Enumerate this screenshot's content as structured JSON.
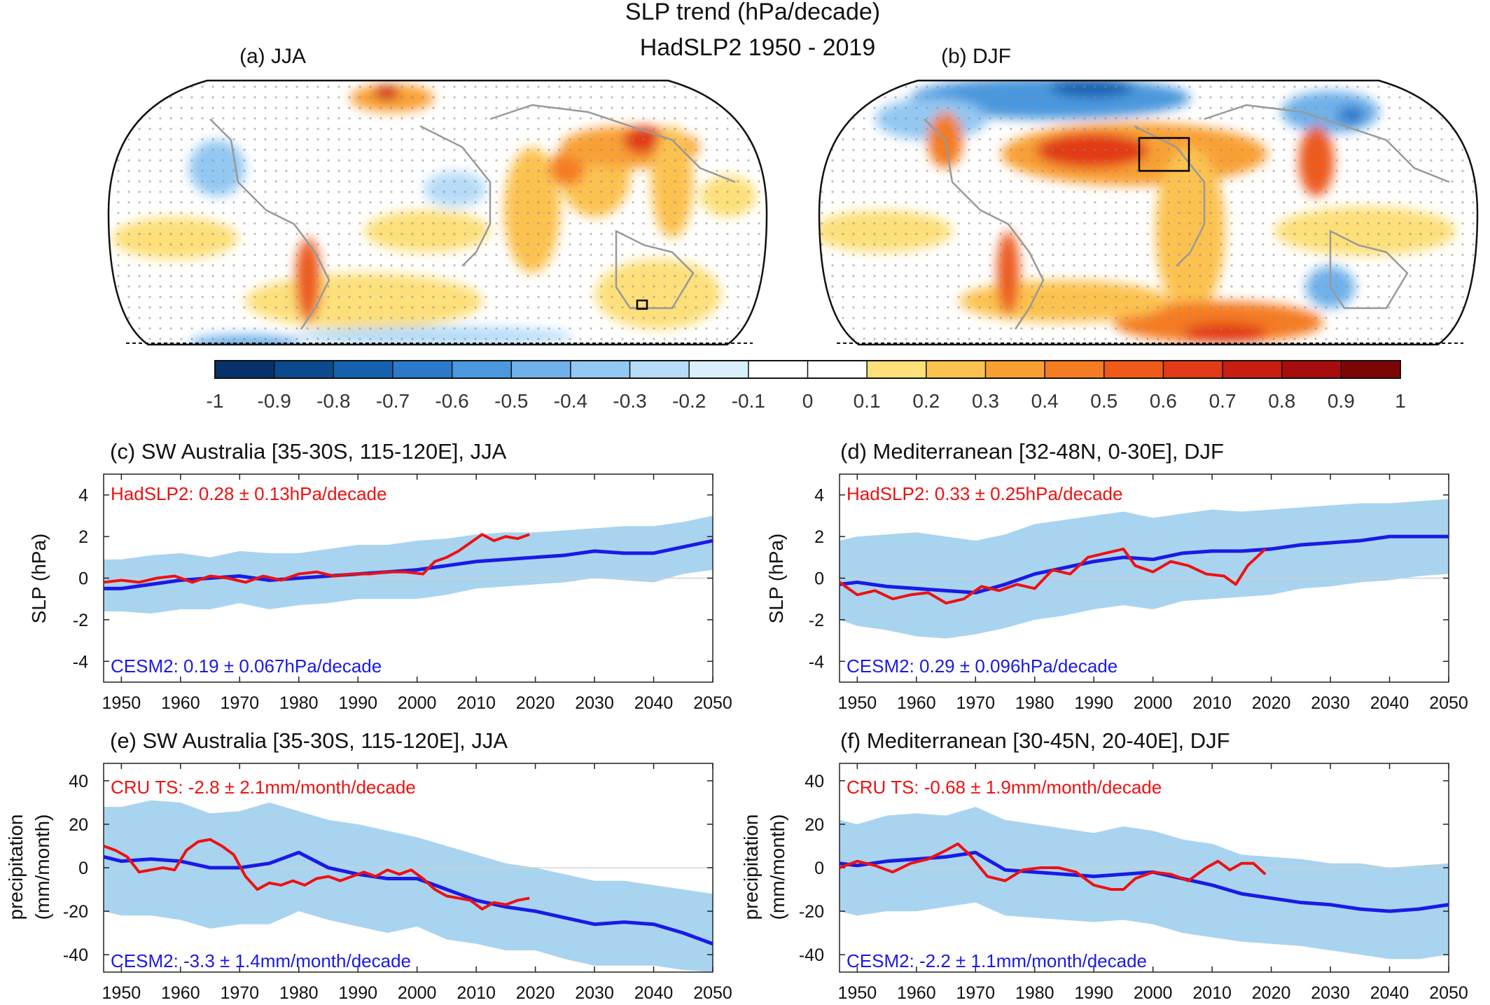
{
  "figure": {
    "title_line1": "SLP trend (hPa/decade)",
    "title_line2": "HadSLP2 1950 - 2019"
  },
  "maps": [
    {
      "label": "(a) JJA"
    },
    {
      "label": "(b) DJF"
    }
  ],
  "colorbar": {
    "ticks": [
      "-1",
      "-0.9",
      "-0.8",
      "-0.7",
      "-0.6",
      "-0.5",
      "-0.4",
      "-0.3",
      "-0.2",
      "-0.1",
      "0",
      "0.1",
      "0.2",
      "0.3",
      "0.4",
      "0.5",
      "0.6",
      "0.7",
      "0.8",
      "0.9",
      "1"
    ],
    "colors": [
      "#08306b",
      "#0b4a8c",
      "#1561b0",
      "#2b7bcc",
      "#4a98de",
      "#6fb1ea",
      "#93c8f2",
      "#b6dcf8",
      "#d9f0fb",
      "#ffffff",
      "#ffffff",
      "#fde07a",
      "#fcc24f",
      "#f9a034",
      "#f57c22",
      "#ee5a1a",
      "#e23b16",
      "#c91d12",
      "#a80d0d",
      "#7d0505"
    ]
  },
  "chart_data": [
    {
      "type": "line",
      "title": "(c) SW Australia [35-30S, 115-120E], JJA",
      "ylabel": "SLP (hPa)",
      "xlim": [
        1947,
        2050
      ],
      "ylim": [
        -5,
        5
      ],
      "xticks": [
        1950,
        1960,
        1970,
        1980,
        1990,
        2000,
        2010,
        2020,
        2030,
        2040,
        2050
      ],
      "yticks": [
        -4,
        -2,
        0,
        2,
        4
      ],
      "annotation_obs": "HadSLP2: 0.28 ± 0.13hPa/decade",
      "annotation_model": "CESM2: 0.19 ± 0.067hPa/decade",
      "obs_color": "#ee1111",
      "model_color": "#1a1ae6",
      "spread_color": "#a9d4f0",
      "obs": {
        "x": [
          1947,
          1950,
          1953,
          1956,
          1959,
          1962,
          1965,
          1968,
          1971,
          1974,
          1977,
          1980,
          1983,
          1986,
          1989,
          1992,
          1995,
          1998,
          2001,
          2003,
          2005,
          2007,
          2009,
          2011,
          2013,
          2015,
          2017,
          2019
        ],
        "y": [
          -0.2,
          -0.1,
          -0.2,
          0.0,
          0.1,
          -0.2,
          0.1,
          0.0,
          -0.2,
          0.1,
          -0.1,
          0.2,
          0.3,
          0.1,
          0.2,
          0.2,
          0.3,
          0.3,
          0.2,
          0.8,
          1.0,
          1.3,
          1.7,
          2.1,
          1.8,
          2.0,
          1.9,
          2.1
        ]
      },
      "model": {
        "x": [
          1947,
          1950,
          1955,
          1960,
          1965,
          1970,
          1975,
          1980,
          1985,
          1990,
          1995,
          2000,
          2005,
          2010,
          2015,
          2020,
          2025,
          2030,
          2035,
          2040,
          2045,
          2050
        ],
        "y": [
          -0.5,
          -0.5,
          -0.3,
          -0.1,
          0.0,
          0.1,
          -0.1,
          0.0,
          0.1,
          0.2,
          0.3,
          0.4,
          0.6,
          0.8,
          0.9,
          1.0,
          1.1,
          1.3,
          1.2,
          1.2,
          1.5,
          1.8
        ]
      },
      "spread": {
        "x": [
          1947,
          1950,
          1955,
          1960,
          1965,
          1970,
          1975,
          1980,
          1985,
          1990,
          1995,
          2000,
          2005,
          2010,
          2015,
          2020,
          2025,
          2030,
          2035,
          2040,
          2045,
          2050
        ],
        "upper": [
          0.9,
          0.9,
          1.1,
          1.2,
          1.0,
          1.3,
          1.2,
          1.2,
          1.4,
          1.6,
          1.6,
          1.8,
          1.9,
          2.1,
          2.2,
          2.2,
          2.3,
          2.4,
          2.5,
          2.5,
          2.7,
          3.0
        ],
        "lower": [
          -1.6,
          -1.6,
          -1.7,
          -1.5,
          -1.5,
          -1.2,
          -1.5,
          -1.3,
          -1.2,
          -1.0,
          -1.0,
          -1.0,
          -0.8,
          -0.5,
          -0.4,
          -0.3,
          -0.2,
          0.0,
          -0.1,
          -0.2,
          0.2,
          0.4
        ]
      }
    },
    {
      "type": "line",
      "title": "(d) Mediterranean [32-48N, 0-30E], DJF",
      "ylabel": "SLP (hPa)",
      "xlim": [
        1947,
        2050
      ],
      "ylim": [
        -5,
        5
      ],
      "xticks": [
        1950,
        1960,
        1970,
        1980,
        1990,
        2000,
        2010,
        2020,
        2030,
        2040,
        2050
      ],
      "yticks": [
        -4,
        -2,
        0,
        2,
        4
      ],
      "annotation_obs": "HadSLP2: 0.33 ± 0.25hPa/decade",
      "annotation_model": "CESM2: 0.29 ± 0.096hPa/decade",
      "obs_color": "#ee1111",
      "model_color": "#1a1ae6",
      "spread_color": "#a9d4f0",
      "obs": {
        "x": [
          1947,
          1950,
          1953,
          1956,
          1959,
          1962,
          1965,
          1968,
          1971,
          1974,
          1977,
          1980,
          1983,
          1986,
          1989,
          1992,
          1995,
          1997,
          2000,
          2003,
          2006,
          2009,
          2012,
          2014,
          2016,
          2019
        ],
        "y": [
          -0.2,
          -0.8,
          -0.6,
          -1.0,
          -0.8,
          -0.7,
          -1.2,
          -1.0,
          -0.4,
          -0.6,
          -0.3,
          -0.5,
          0.4,
          0.2,
          1.0,
          1.2,
          1.4,
          0.6,
          0.3,
          0.8,
          0.6,
          0.2,
          0.1,
          -0.3,
          0.6,
          1.4
        ]
      },
      "model": {
        "x": [
          1947,
          1950,
          1955,
          1960,
          1965,
          1970,
          1975,
          1980,
          1985,
          1990,
          1995,
          2000,
          2005,
          2010,
          2015,
          2020,
          2025,
          2030,
          2035,
          2040,
          2045,
          2050
        ],
        "y": [
          -0.3,
          -0.2,
          -0.4,
          -0.5,
          -0.6,
          -0.7,
          -0.3,
          0.2,
          0.5,
          0.8,
          1.0,
          0.9,
          1.2,
          1.3,
          1.3,
          1.4,
          1.6,
          1.7,
          1.8,
          2.0,
          2.0,
          2.0
        ]
      },
      "spread": {
        "x": [
          1947,
          1950,
          1955,
          1960,
          1965,
          1970,
          1975,
          1980,
          1985,
          1990,
          1995,
          2000,
          2005,
          2010,
          2015,
          2020,
          2025,
          2030,
          2035,
          2040,
          2045,
          2050
        ],
        "upper": [
          1.8,
          2.0,
          2.1,
          2.2,
          2.0,
          1.8,
          2.1,
          2.6,
          2.8,
          3.0,
          3.2,
          2.9,
          3.1,
          3.3,
          3.2,
          3.3,
          3.4,
          3.5,
          3.6,
          3.6,
          3.7,
          3.8
        ],
        "lower": [
          -2.0,
          -2.3,
          -2.5,
          -2.8,
          -2.9,
          -2.7,
          -2.4,
          -2.0,
          -1.8,
          -1.5,
          -1.3,
          -1.5,
          -1.1,
          -1.0,
          -0.9,
          -0.8,
          -0.5,
          -0.4,
          -0.2,
          -0.1,
          0.1,
          0.2
        ]
      }
    },
    {
      "type": "line",
      "title": "(e) SW Australia [35-30S, 115-120E], JJA",
      "ylabel": "precipitation (mm/month)",
      "xlim": [
        1947,
        2050
      ],
      "ylim": [
        -48,
        48
      ],
      "xticks": [
        1950,
        1960,
        1970,
        1980,
        1990,
        2000,
        2010,
        2020,
        2030,
        2040,
        2050
      ],
      "yticks": [
        -40,
        -20,
        0,
        20,
        40
      ],
      "annotation_obs": "CRU TS:   -2.8 ± 2.1mm/month/decade",
      "annotation_model": "CESM2:  -3.3 ± 1.4mm/month/decade",
      "obs_color": "#ee1111",
      "model_color": "#1a1ae6",
      "spread_color": "#a9d4f0",
      "obs": {
        "x": [
          1947,
          1949,
          1951,
          1953,
          1955,
          1957,
          1959,
          1961,
          1963,
          1965,
          1967,
          1969,
          1971,
          1973,
          1975,
          1977,
          1979,
          1981,
          1983,
          1985,
          1987,
          1989,
          1991,
          1993,
          1995,
          1997,
          1999,
          2001,
          2003,
          2005,
          2007,
          2009,
          2011,
          2013,
          2015,
          2017,
          2019
        ],
        "y": [
          10,
          8,
          5,
          -2,
          -1,
          0,
          -1,
          8,
          12,
          13,
          10,
          6,
          -4,
          -10,
          -7,
          -8,
          -6,
          -8,
          -5,
          -4,
          -6,
          -4,
          -2,
          -4,
          -1,
          -3,
          -1,
          -5,
          -10,
          -13,
          -14,
          -15,
          -19,
          -16,
          -17,
          -15,
          -14
        ]
      },
      "model": {
        "x": [
          1947,
          1950,
          1955,
          1960,
          1965,
          1970,
          1975,
          1980,
          1985,
          1990,
          1995,
          2000,
          2005,
          2010,
          2015,
          2020,
          2025,
          2030,
          2035,
          2040,
          2045,
          2050
        ],
        "y": [
          5,
          3,
          4,
          3,
          0,
          0,
          2,
          7,
          0,
          -3,
          -5,
          -5,
          -10,
          -15,
          -18,
          -20,
          -23,
          -26,
          -25,
          -26,
          -30,
          -35
        ]
      },
      "spread": {
        "x": [
          1947,
          1950,
          1955,
          1960,
          1965,
          1970,
          1975,
          1980,
          1985,
          1990,
          1995,
          2000,
          2005,
          2010,
          2015,
          2020,
          2025,
          2030,
          2035,
          2040,
          2045,
          2050
        ],
        "upper": [
          28,
          28,
          31,
          30,
          25,
          26,
          30,
          26,
          22,
          20,
          17,
          14,
          10,
          6,
          2,
          0,
          -3,
          -6,
          -6,
          -8,
          -10,
          -12
        ],
        "lower": [
          -20,
          -22,
          -22,
          -24,
          -28,
          -26,
          -26,
          -20,
          -24,
          -27,
          -30,
          -27,
          -33,
          -35,
          -38,
          -38,
          -42,
          -45,
          -45,
          -45,
          -47,
          -48
        ]
      }
    },
    {
      "type": "line",
      "title": "(f) Mediterranean [30-45N, 20-40E], DJF",
      "ylabel": "precipitation (mm/month)",
      "xlim": [
        1947,
        2050
      ],
      "ylim": [
        -48,
        48
      ],
      "xticks": [
        1950,
        1960,
        1970,
        1980,
        1990,
        2000,
        2010,
        2020,
        2030,
        2040,
        2050
      ],
      "yticks": [
        -40,
        -20,
        0,
        20,
        40
      ],
      "annotation_obs": "CRU TS:   -0.68 ± 1.9mm/month/decade",
      "annotation_model": "CESM2:  -2.2 ± 1.1mm/month/decade",
      "obs_color": "#ee1111",
      "model_color": "#1a1ae6",
      "spread_color": "#a9d4f0",
      "obs": {
        "x": [
          1947,
          1950,
          1953,
          1956,
          1959,
          1962,
          1965,
          1967,
          1969,
          1972,
          1975,
          1978,
          1981,
          1984,
          1987,
          1990,
          1993,
          1995,
          1997,
          2000,
          2003,
          2006,
          2009,
          2011,
          2013,
          2015,
          2017,
          2019
        ],
        "y": [
          0,
          3,
          1,
          -2,
          2,
          4,
          8,
          11,
          6,
          -4,
          -6,
          -1,
          0,
          0,
          -2,
          -8,
          -10,
          -10,
          -5,
          -2,
          -3,
          -6,
          0,
          3,
          -1,
          2,
          2,
          -3
        ]
      },
      "model": {
        "x": [
          1947,
          1950,
          1955,
          1960,
          1965,
          1970,
          1975,
          1980,
          1985,
          1990,
          1995,
          2000,
          2005,
          2010,
          2015,
          2020,
          2025,
          2030,
          2035,
          2040,
          2045,
          2050
        ],
        "y": [
          2,
          1,
          3,
          4,
          5,
          7,
          -1,
          -2,
          -3,
          -4,
          -3,
          -2,
          -5,
          -8,
          -12,
          -14,
          -16,
          -17,
          -19,
          -20,
          -19,
          -17
        ]
      },
      "spread": {
        "x": [
          1947,
          1950,
          1955,
          1960,
          1965,
          1970,
          1975,
          1980,
          1985,
          1990,
          1995,
          2000,
          2005,
          2010,
          2015,
          2020,
          2025,
          2030,
          2035,
          2040,
          2045,
          2050
        ],
        "upper": [
          22,
          20,
          24,
          25,
          24,
          28,
          22,
          20,
          18,
          16,
          19,
          17,
          13,
          11,
          6,
          5,
          4,
          2,
          2,
          0,
          1,
          2
        ],
        "lower": [
          -20,
          -22,
          -20,
          -20,
          -18,
          -16,
          -22,
          -23,
          -24,
          -25,
          -24,
          -26,
          -30,
          -32,
          -34,
          -35,
          -36,
          -38,
          -40,
          -42,
          -42,
          -40
        ]
      }
    }
  ]
}
